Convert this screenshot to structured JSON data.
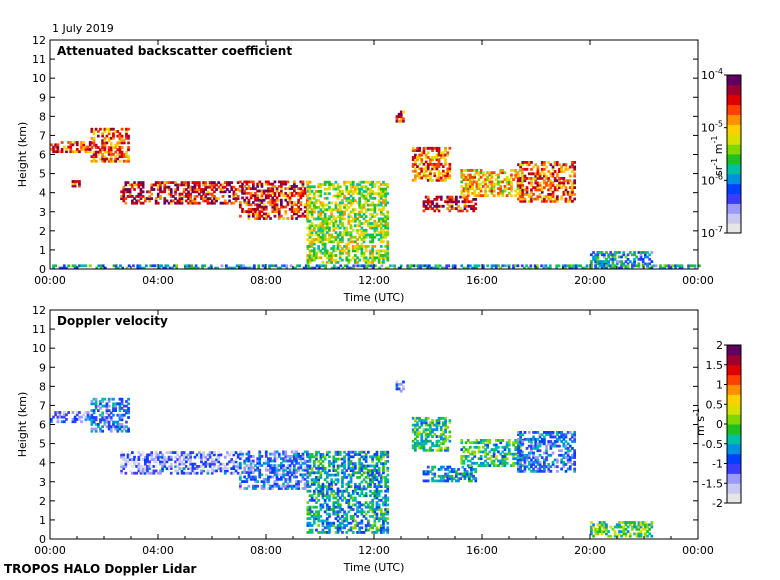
{
  "date_label": "1 July 2019",
  "footer": "TROPOS HALO Doppler Lidar",
  "colors": {
    "colormap": [
      "#e6e6e6",
      "#c8c8f0",
      "#9a9aff",
      "#3c3cff",
      "#0040ff",
      "#0090e0",
      "#00c0a0",
      "#20c020",
      "#80d800",
      "#d8e000",
      "#ffd000",
      "#ff9000",
      "#ff4000",
      "#e00000",
      "#a00030",
      "#600060"
    ]
  },
  "chart_data": [
    {
      "type": "heatmap",
      "title": "Attenuated backscatter coefficient",
      "xlabel": "Time (UTC)",
      "ylabel": "Height (km)",
      "xlim": [
        0,
        24
      ],
      "ylim": [
        0,
        12
      ],
      "x_ticks": [
        "00:00",
        "04:00",
        "08:00",
        "12:00",
        "16:00",
        "20:00",
        "00:00"
      ],
      "y_ticks": [
        "0",
        "1",
        "2",
        "3",
        "4",
        "5",
        "6",
        "7",
        "8",
        "9",
        "10",
        "11",
        "12"
      ],
      "colorbar": {
        "scale": "log",
        "range": [
          1e-07,
          0.0001
        ],
        "tick_bases": [
          "10",
          "10",
          "10",
          "10"
        ],
        "tick_exps": [
          "-7",
          "-6",
          "-5",
          "-4"
        ],
        "unit_a": "sr",
        "unit_a_exp": "-1",
        "unit_b": "m",
        "unit_b_exp": "-1"
      },
      "layers": [
        {
          "t0": 0.0,
          "t1": 1.5,
          "h0": 6.1,
          "h1": 6.6,
          "level": 0.8
        },
        {
          "t0": 1.5,
          "t1": 2.9,
          "h0": 5.6,
          "h1": 7.3,
          "level": 0.75
        },
        {
          "t0": 0.8,
          "t1": 1.2,
          "h0": 4.3,
          "h1": 4.6,
          "level": 0.82
        },
        {
          "t0": 2.6,
          "t1": 7.0,
          "h0": 3.4,
          "h1": 4.6,
          "level": 0.85
        },
        {
          "t0": 7.0,
          "t1": 9.5,
          "h0": 2.6,
          "h1": 4.6,
          "level": 0.82
        },
        {
          "t0": 9.5,
          "t1": 12.5,
          "h0": 0.3,
          "h1": 4.6,
          "level": 0.55
        },
        {
          "t0": 12.8,
          "t1": 13.1,
          "h0": 7.7,
          "h1": 8.2,
          "level": 0.8
        },
        {
          "t0": 13.4,
          "t1": 14.8,
          "h0": 4.6,
          "h1": 6.3,
          "level": 0.75
        },
        {
          "t0": 13.8,
          "t1": 15.8,
          "h0": 3.0,
          "h1": 3.8,
          "level": 0.85
        },
        {
          "t0": 15.2,
          "t1": 17.5,
          "h0": 3.8,
          "h1": 5.2,
          "level": 0.65
        },
        {
          "t0": 17.3,
          "t1": 19.4,
          "h0": 3.5,
          "h1": 5.6,
          "level": 0.78
        },
        {
          "t0": 20.0,
          "t1": 22.3,
          "h0": 0.1,
          "h1": 0.9,
          "level": 0.35
        },
        {
          "t0": 0.0,
          "t1": 24.0,
          "h0": 0.0,
          "h1": 0.15,
          "level": 0.35
        }
      ]
    },
    {
      "type": "heatmap",
      "title": "Doppler velocity",
      "xlabel": "Time (UTC)",
      "ylabel": "Height (km)",
      "xlim": [
        0,
        24
      ],
      "ylim": [
        0,
        12
      ],
      "x_ticks": [
        "00:00",
        "04:00",
        "08:00",
        "12:00",
        "16:00",
        "20:00",
        "00:00"
      ],
      "y_ticks": [
        "0",
        "1",
        "2",
        "3",
        "4",
        "5",
        "6",
        "7",
        "8",
        "9",
        "10",
        "11",
        "12"
      ],
      "colorbar": {
        "scale": "linear",
        "range": [
          -2,
          2
        ],
        "ticks": [
          "-2",
          "-1.5",
          "-1",
          "-0.5",
          "0",
          "0.5",
          "1",
          "1.5",
          "2"
        ],
        "unit_a": "m",
        "unit_b": "s",
        "unit_b_exp": "-1"
      },
      "layers": [
        {
          "t0": 0.0,
          "t1": 1.5,
          "h0": 6.1,
          "h1": 6.6,
          "value": -1.2
        },
        {
          "t0": 1.5,
          "t1": 2.9,
          "h0": 5.6,
          "h1": 7.3,
          "value": -0.9
        },
        {
          "t0": 2.6,
          "t1": 7.0,
          "h0": 3.4,
          "h1": 4.6,
          "value": -1.3
        },
        {
          "t0": 7.0,
          "t1": 9.5,
          "h0": 2.6,
          "h1": 4.6,
          "value": -1.0
        },
        {
          "t0": 9.5,
          "t1": 12.5,
          "h0": 0.3,
          "h1": 4.6,
          "value": -0.5
        },
        {
          "t0": 12.8,
          "t1": 13.1,
          "h0": 7.7,
          "h1": 8.2,
          "value": -1.2
        },
        {
          "t0": 13.4,
          "t1": 14.8,
          "h0": 4.6,
          "h1": 6.3,
          "value": -0.2
        },
        {
          "t0": 13.8,
          "t1": 15.8,
          "h0": 3.0,
          "h1": 3.8,
          "value": -0.6
        },
        {
          "t0": 15.2,
          "t1": 17.5,
          "h0": 3.8,
          "h1": 5.2,
          "value": -0.3
        },
        {
          "t0": 17.3,
          "t1": 19.4,
          "h0": 3.5,
          "h1": 5.6,
          "value": -0.9
        },
        {
          "t0": 20.0,
          "t1": 22.3,
          "h0": 0.1,
          "h1": 0.9,
          "value": -0.1
        }
      ]
    }
  ]
}
